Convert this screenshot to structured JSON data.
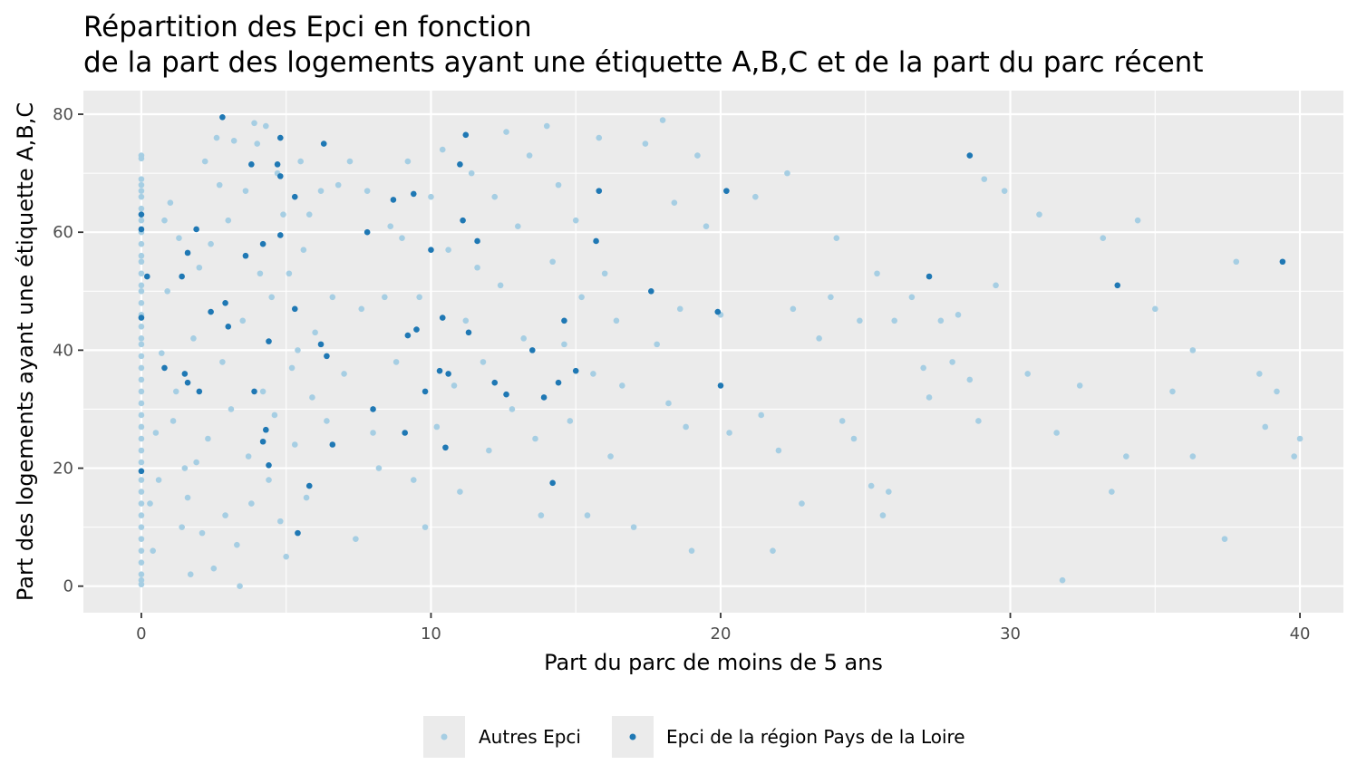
{
  "chart_data": {
    "type": "scatter",
    "title_line1": "Répartition des Epci en fonction",
    "title_line2": "de la part des logements ayant une étiquette A,B,C et de la part du parc récent",
    "xlabel": "Part du parc de moins de 5 ans",
    "ylabel": "Part des logements ayant une étiquette A,B,C",
    "xlim": [
      -2,
      41.5
    ],
    "ylim": [
      -4.5,
      84
    ],
    "x_ticks": [
      0,
      10,
      20,
      30,
      40
    ],
    "y_ticks": [
      0,
      20,
      40,
      60,
      80
    ],
    "x_tick_labels": [
      "0",
      "10",
      "20",
      "30",
      "40"
    ],
    "y_tick_labels": [
      "0",
      "20",
      "40",
      "60",
      "80"
    ],
    "grid": true,
    "legend_position": "bottom",
    "series": [
      {
        "name": "Autres Epci",
        "color": "#a6cee3",
        "points": [
          [
            0,
            73
          ],
          [
            0,
            72.5
          ],
          [
            0,
            69
          ],
          [
            0,
            68
          ],
          [
            0,
            67
          ],
          [
            0,
            66
          ],
          [
            0,
            64
          ],
          [
            0,
            62
          ],
          [
            0,
            60
          ],
          [
            0,
            58
          ],
          [
            0,
            56
          ],
          [
            0,
            55
          ],
          [
            0,
            53
          ],
          [
            0,
            51
          ],
          [
            0,
            50
          ],
          [
            0,
            48
          ],
          [
            0,
            46
          ],
          [
            0,
            44
          ],
          [
            0,
            42
          ],
          [
            0,
            41
          ],
          [
            0,
            39
          ],
          [
            0,
            37
          ],
          [
            0,
            35
          ],
          [
            0,
            33
          ],
          [
            0,
            31
          ],
          [
            0,
            29
          ],
          [
            0,
            27
          ],
          [
            0,
            25
          ],
          [
            0,
            23
          ],
          [
            0,
            21
          ],
          [
            0,
            18
          ],
          [
            0,
            16
          ],
          [
            0,
            14
          ],
          [
            0,
            12
          ],
          [
            0,
            10
          ],
          [
            0,
            8
          ],
          [
            0,
            6
          ],
          [
            0,
            4
          ],
          [
            0,
            2
          ],
          [
            0,
            1
          ],
          [
            0,
            0.3
          ],
          [
            0.3,
            14
          ],
          [
            0.4,
            6
          ],
          [
            0.5,
            26
          ],
          [
            0.6,
            18
          ],
          [
            0.7,
            39.5
          ],
          [
            0.8,
            62
          ],
          [
            0.9,
            50
          ],
          [
            1.0,
            65
          ],
          [
            1.1,
            28
          ],
          [
            1.2,
            33
          ],
          [
            1.3,
            59
          ],
          [
            1.4,
            10
          ],
          [
            1.5,
            20
          ],
          [
            1.6,
            15
          ],
          [
            1.7,
            2
          ],
          [
            1.8,
            42
          ],
          [
            1.9,
            21
          ],
          [
            2.0,
            54
          ],
          [
            2.1,
            9
          ],
          [
            2.2,
            72
          ],
          [
            2.3,
            25
          ],
          [
            2.4,
            58
          ],
          [
            2.5,
            3
          ],
          [
            2.6,
            76
          ],
          [
            2.7,
            68
          ],
          [
            2.8,
            38
          ],
          [
            2.9,
            12
          ],
          [
            3.0,
            62
          ],
          [
            3.1,
            30
          ],
          [
            3.2,
            75.5
          ],
          [
            3.3,
            7
          ],
          [
            3.4,
            0
          ],
          [
            3.5,
            45
          ],
          [
            3.6,
            67
          ],
          [
            3.7,
            22
          ],
          [
            3.8,
            14
          ],
          [
            3.9,
            78.5
          ],
          [
            4.0,
            75
          ],
          [
            4.1,
            53
          ],
          [
            4.2,
            33
          ],
          [
            4.3,
            78
          ],
          [
            4.4,
            18
          ],
          [
            4.5,
            49
          ],
          [
            4.6,
            29
          ],
          [
            4.7,
            70
          ],
          [
            4.8,
            11
          ],
          [
            4.9,
            63
          ],
          [
            5.0,
            5
          ],
          [
            5.1,
            53
          ],
          [
            5.2,
            37
          ],
          [
            5.3,
            24
          ],
          [
            5.4,
            40
          ],
          [
            5.5,
            72
          ],
          [
            5.6,
            57
          ],
          [
            5.7,
            15
          ],
          [
            5.8,
            63
          ],
          [
            5.9,
            32
          ],
          [
            6.0,
            43
          ],
          [
            6.2,
            67
          ],
          [
            6.4,
            28
          ],
          [
            6.6,
            49
          ],
          [
            6.8,
            68
          ],
          [
            7.0,
            36
          ],
          [
            7.2,
            72
          ],
          [
            7.4,
            8
          ],
          [
            7.6,
            47
          ],
          [
            7.8,
            67
          ],
          [
            8.0,
            26
          ],
          [
            8.2,
            20
          ],
          [
            8.4,
            49
          ],
          [
            8.6,
            61
          ],
          [
            8.8,
            38
          ],
          [
            9.0,
            59
          ],
          [
            9.2,
            72
          ],
          [
            9.4,
            18
          ],
          [
            9.6,
            49
          ],
          [
            9.8,
            10
          ],
          [
            10.0,
            66
          ],
          [
            10.2,
            27
          ],
          [
            10.4,
            74
          ],
          [
            10.6,
            57
          ],
          [
            10.8,
            34
          ],
          [
            11.0,
            16
          ],
          [
            11.2,
            45
          ],
          [
            11.4,
            70
          ],
          [
            11.6,
            54
          ],
          [
            11.8,
            38
          ],
          [
            12.0,
            23
          ],
          [
            12.2,
            66
          ],
          [
            12.4,
            51
          ],
          [
            12.6,
            77
          ],
          [
            12.8,
            30
          ],
          [
            13.0,
            61
          ],
          [
            13.2,
            42
          ],
          [
            13.4,
            73
          ],
          [
            13.6,
            25
          ],
          [
            13.8,
            12
          ],
          [
            14.0,
            78
          ],
          [
            14.2,
            55
          ],
          [
            14.4,
            68
          ],
          [
            14.6,
            41
          ],
          [
            14.8,
            28
          ],
          [
            15.0,
            62
          ],
          [
            15.2,
            49
          ],
          [
            15.4,
            12
          ],
          [
            15.6,
            36
          ],
          [
            15.8,
            76
          ],
          [
            16.0,
            53
          ],
          [
            16.2,
            22
          ],
          [
            16.4,
            45
          ],
          [
            16.6,
            34
          ],
          [
            17.0,
            10
          ],
          [
            17.4,
            75
          ],
          [
            17.8,
            41
          ],
          [
            18.0,
            79
          ],
          [
            18.2,
            31
          ],
          [
            18.4,
            65
          ],
          [
            18.6,
            47
          ],
          [
            18.8,
            27
          ],
          [
            19.0,
            6
          ],
          [
            19.2,
            73
          ],
          [
            19.5,
            61
          ],
          [
            20.0,
            46
          ],
          [
            20.3,
            26
          ],
          [
            21.2,
            66
          ],
          [
            21.4,
            29
          ],
          [
            21.8,
            6
          ],
          [
            22.0,
            23
          ],
          [
            22.3,
            70
          ],
          [
            22.5,
            47
          ],
          [
            22.8,
            14
          ],
          [
            23.4,
            42
          ],
          [
            23.8,
            49
          ],
          [
            24.0,
            59
          ],
          [
            24.2,
            28
          ],
          [
            24.6,
            25
          ],
          [
            24.8,
            45
          ],
          [
            25.2,
            17
          ],
          [
            25.4,
            53
          ],
          [
            25.6,
            12
          ],
          [
            25.8,
            16
          ],
          [
            26.0,
            45
          ],
          [
            26.6,
            49
          ],
          [
            27.0,
            37
          ],
          [
            27.2,
            32
          ],
          [
            27.6,
            45
          ],
          [
            28.0,
            38
          ],
          [
            28.2,
            46
          ],
          [
            28.6,
            35
          ],
          [
            28.9,
            28
          ],
          [
            29.1,
            69
          ],
          [
            29.5,
            51
          ],
          [
            29.8,
            67
          ],
          [
            30.6,
            36
          ],
          [
            31.0,
            63
          ],
          [
            31.6,
            26
          ],
          [
            31.8,
            1
          ],
          [
            32.4,
            34
          ],
          [
            33.2,
            59
          ],
          [
            33.5,
            16
          ],
          [
            34.0,
            22
          ],
          [
            34.4,
            62
          ],
          [
            35.0,
            47
          ],
          [
            35.6,
            33
          ],
          [
            36.3,
            40
          ],
          [
            36.3,
            22
          ],
          [
            37.4,
            8
          ],
          [
            37.8,
            55
          ],
          [
            38.6,
            36
          ],
          [
            38.8,
            27
          ],
          [
            39.2,
            33
          ],
          [
            39.8,
            22
          ],
          [
            40.0,
            25
          ]
        ]
      },
      {
        "name": "Epci de la région Pays de la Loire",
        "color": "#1f78b4",
        "points": [
          [
            0,
            63
          ],
          [
            0,
            60.5
          ],
          [
            0,
            45.5
          ],
          [
            0,
            19.5
          ],
          [
            0.2,
            52.5
          ],
          [
            0.8,
            37
          ],
          [
            1.4,
            52.5
          ],
          [
            1.5,
            36
          ],
          [
            1.6,
            34.5
          ],
          [
            1.6,
            56.5
          ],
          [
            1.9,
            60.5
          ],
          [
            2.0,
            33
          ],
          [
            2.4,
            46.5
          ],
          [
            2.8,
            79.5
          ],
          [
            3.0,
            44
          ],
          [
            2.9,
            48
          ],
          [
            3.6,
            56
          ],
          [
            3.8,
            71.5
          ],
          [
            3.9,
            33
          ],
          [
            4.2,
            58
          ],
          [
            4.2,
            24.5
          ],
          [
            4.3,
            26.5
          ],
          [
            4.4,
            20.5
          ],
          [
            4.4,
            41.5
          ],
          [
            4.7,
            71.5
          ],
          [
            4.8,
            76
          ],
          [
            4.8,
            69.5
          ],
          [
            4.8,
            59.5
          ],
          [
            5.3,
            66
          ],
          [
            5.3,
            47
          ],
          [
            5.4,
            9
          ],
          [
            5.8,
            17
          ],
          [
            6.2,
            41
          ],
          [
            6.3,
            75
          ],
          [
            6.4,
            39
          ],
          [
            6.6,
            24
          ],
          [
            7.8,
            60
          ],
          [
            8.0,
            30
          ],
          [
            8.7,
            65.5
          ],
          [
            9.1,
            26
          ],
          [
            9.2,
            42.5
          ],
          [
            9.4,
            66.5
          ],
          [
            9.5,
            43.5
          ],
          [
            9.8,
            33
          ],
          [
            10.0,
            57
          ],
          [
            10.3,
            36.5
          ],
          [
            10.4,
            45.5
          ],
          [
            10.5,
            23.5
          ],
          [
            10.6,
            36
          ],
          [
            11.0,
            71.5
          ],
          [
            11.1,
            62
          ],
          [
            11.2,
            76.5
          ],
          [
            11.3,
            43
          ],
          [
            11.6,
            58.5
          ],
          [
            12.2,
            34.5
          ],
          [
            12.6,
            32.5
          ],
          [
            13.5,
            40
          ],
          [
            13.9,
            32
          ],
          [
            14.2,
            17.5
          ],
          [
            14.4,
            34.5
          ],
          [
            14.6,
            45
          ],
          [
            15.0,
            36.5
          ],
          [
            15.7,
            58.5
          ],
          [
            15.8,
            67
          ],
          [
            17.6,
            50
          ],
          [
            19.9,
            46.5
          ],
          [
            20.0,
            34
          ],
          [
            20.2,
            67
          ],
          [
            27.2,
            52.5
          ],
          [
            28.6,
            73
          ],
          [
            33.7,
            51
          ],
          [
            39.4,
            55
          ]
        ]
      }
    ]
  }
}
